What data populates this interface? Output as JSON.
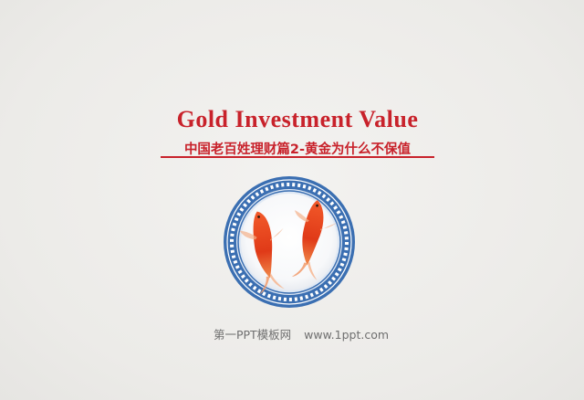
{
  "slide": {
    "title": "Gold Investment Value",
    "subtitle": "中国老百姓理财篇2-黄金为什么不保值",
    "footer_brand": "第一PPT模板网",
    "footer_url": "www.1ppt.com"
  },
  "colors": {
    "accent_red": "#c8222b",
    "plate_blue": "#3a6fb0",
    "koi_orange": "#e8421e",
    "background": "#efeeec"
  },
  "icons": {
    "plate": "koi-plate-illustration"
  }
}
